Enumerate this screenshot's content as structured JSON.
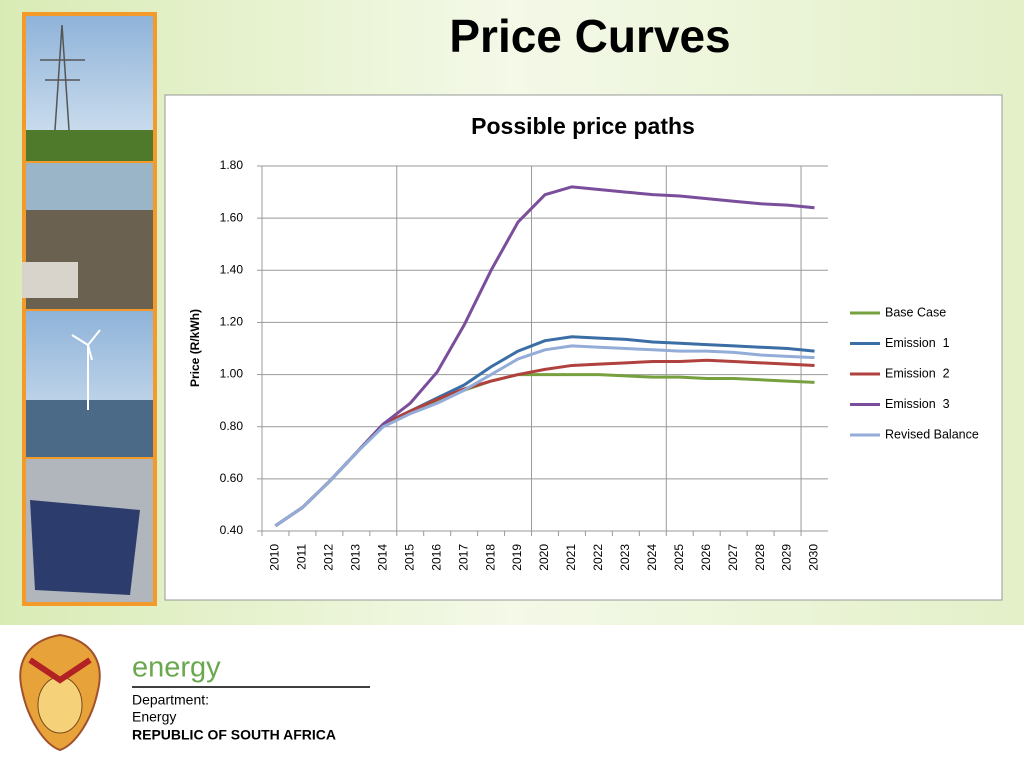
{
  "slide_title": "Price Curves",
  "footer": {
    "brand": "energy",
    "line1": "Department:",
    "line2": "Energy",
    "line3": "REPUBLIC OF SOUTH AFRICA"
  },
  "chart_data": {
    "type": "line",
    "title": "Possible price paths",
    "y_label": "Price (R/kWh)",
    "categories": [
      "2010",
      "2011",
      "2012",
      "2013",
      "2014",
      "2015",
      "2016",
      "2017",
      "2018",
      "2019",
      "2020",
      "2021",
      "2022",
      "2023",
      "2024",
      "2025",
      "2026",
      "2027",
      "2028",
      "2029",
      "2030"
    ],
    "series": [
      {
        "name": "Base Case",
        "color": "#77a03f",
        "values": [
          0.42,
          0.49,
          0.59,
          0.7,
          0.81,
          0.86,
          0.9,
          0.94,
          0.975,
          1.0,
          1.0,
          1.0,
          1.0,
          0.995,
          0.99,
          0.99,
          0.985,
          0.985,
          0.98,
          0.975,
          0.97
        ]
      },
      {
        "name": "Emission  1",
        "color": "#3a6ea5",
        "values": [
          0.42,
          0.49,
          0.59,
          0.7,
          0.81,
          0.86,
          0.91,
          0.96,
          1.03,
          1.09,
          1.13,
          1.145,
          1.14,
          1.135,
          1.125,
          1.12,
          1.115,
          1.11,
          1.105,
          1.1,
          1.09
        ]
      },
      {
        "name": "Emission  2",
        "color": "#b0413e",
        "values": [
          0.42,
          0.49,
          0.59,
          0.7,
          0.81,
          0.86,
          0.905,
          0.945,
          0.975,
          1.0,
          1.02,
          1.035,
          1.04,
          1.045,
          1.05,
          1.05,
          1.055,
          1.05,
          1.045,
          1.04,
          1.035
        ]
      },
      {
        "name": "Emission  3",
        "color": "#7a4e9b",
        "values": [
          0.42,
          0.49,
          0.59,
          0.7,
          0.81,
          0.89,
          1.01,
          1.19,
          1.4,
          1.585,
          1.69,
          1.72,
          1.71,
          1.7,
          1.69,
          1.685,
          1.675,
          1.665,
          1.655,
          1.65,
          1.64
        ]
      },
      {
        "name": "Revised Balance",
        "color": "#93add8",
        "values": [
          0.42,
          0.49,
          0.59,
          0.7,
          0.8,
          0.85,
          0.89,
          0.94,
          1.0,
          1.06,
          1.095,
          1.11,
          1.105,
          1.1,
          1.095,
          1.09,
          1.09,
          1.085,
          1.075,
          1.07,
          1.065
        ]
      }
    ],
    "ylim": [
      0.4,
      1.8
    ],
    "yticks": [
      {
        "value": 0.4,
        "label": "0.40"
      },
      {
        "value": 0.6,
        "label": "0.60"
      },
      {
        "value": 0.8,
        "label": "0.80"
      },
      {
        "value": 1.0,
        "label": "1.00"
      },
      {
        "value": 1.2,
        "label": "1.20"
      },
      {
        "value": 1.4,
        "label": "1.40"
      },
      {
        "value": 1.6,
        "label": "1.60"
      },
      {
        "value": 1.8,
        "label": "1.80"
      }
    ],
    "grid": true,
    "legend": "right"
  }
}
